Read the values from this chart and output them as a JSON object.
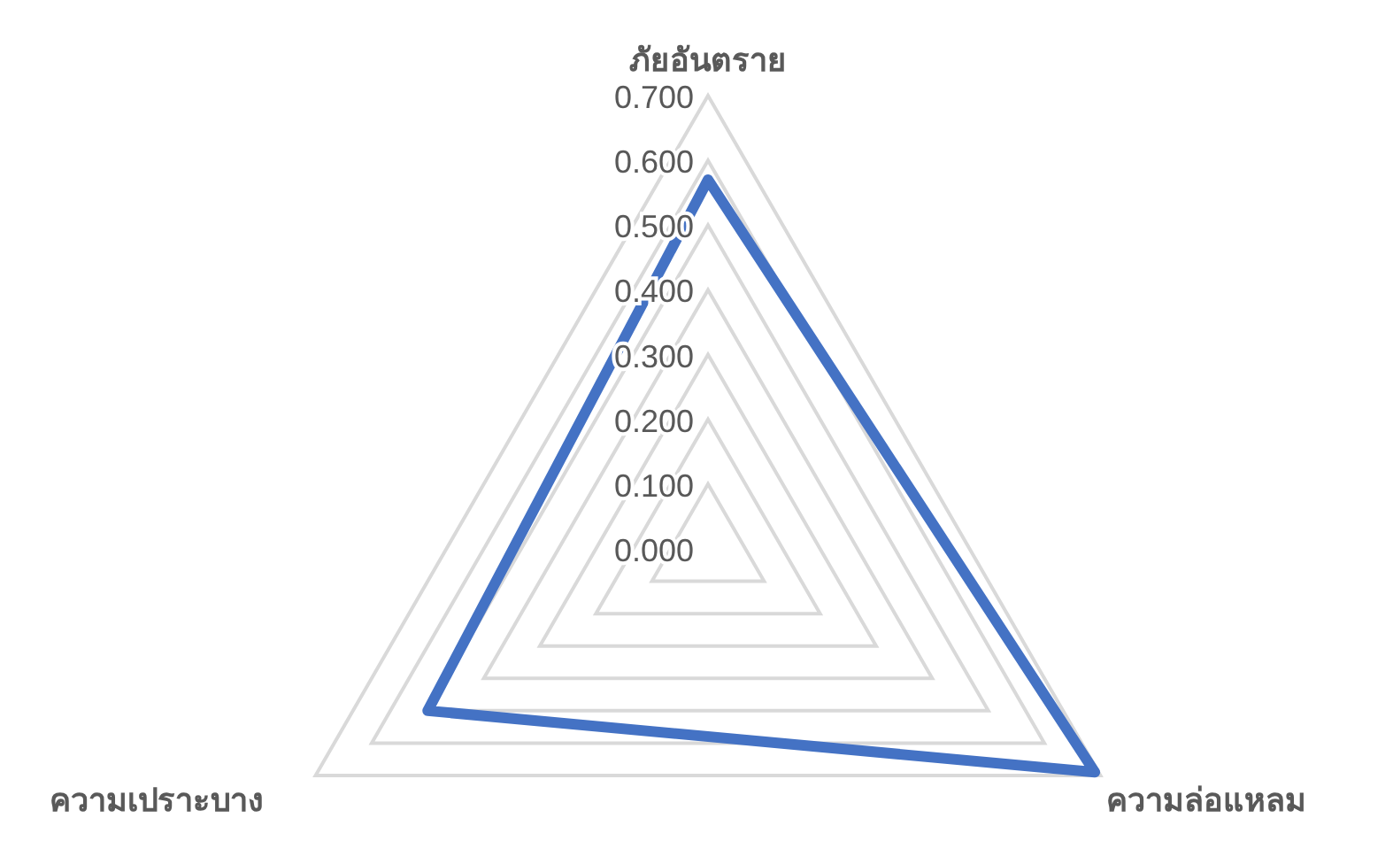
{
  "chart_data": {
    "type": "radar",
    "categories": [
      "ภัยอันตราย",
      "ความล่อแหลม",
      "ความเปราะบาง"
    ],
    "series": [
      {
        "color": "#4472c4",
        "values": [
          0.57,
          0.69,
          0.5
        ]
      }
    ],
    "ylim": [
      0,
      0.7
    ],
    "yticks": [
      {
        "value": 0,
        "label": "0.000"
      },
      {
        "value": 0.1,
        "label": "0.100"
      },
      {
        "value": 0.2,
        "label": "0.200"
      },
      {
        "value": 0.3,
        "label": "0.300"
      },
      {
        "value": 0.4,
        "label": "0.400"
      },
      {
        "value": 0.5,
        "label": "0.500"
      },
      {
        "value": 0.6,
        "label": "0.600"
      },
      {
        "value": 0.7,
        "label": "0.700"
      }
    ],
    "grid": true,
    "marker": "none",
    "line_style": "solid"
  }
}
